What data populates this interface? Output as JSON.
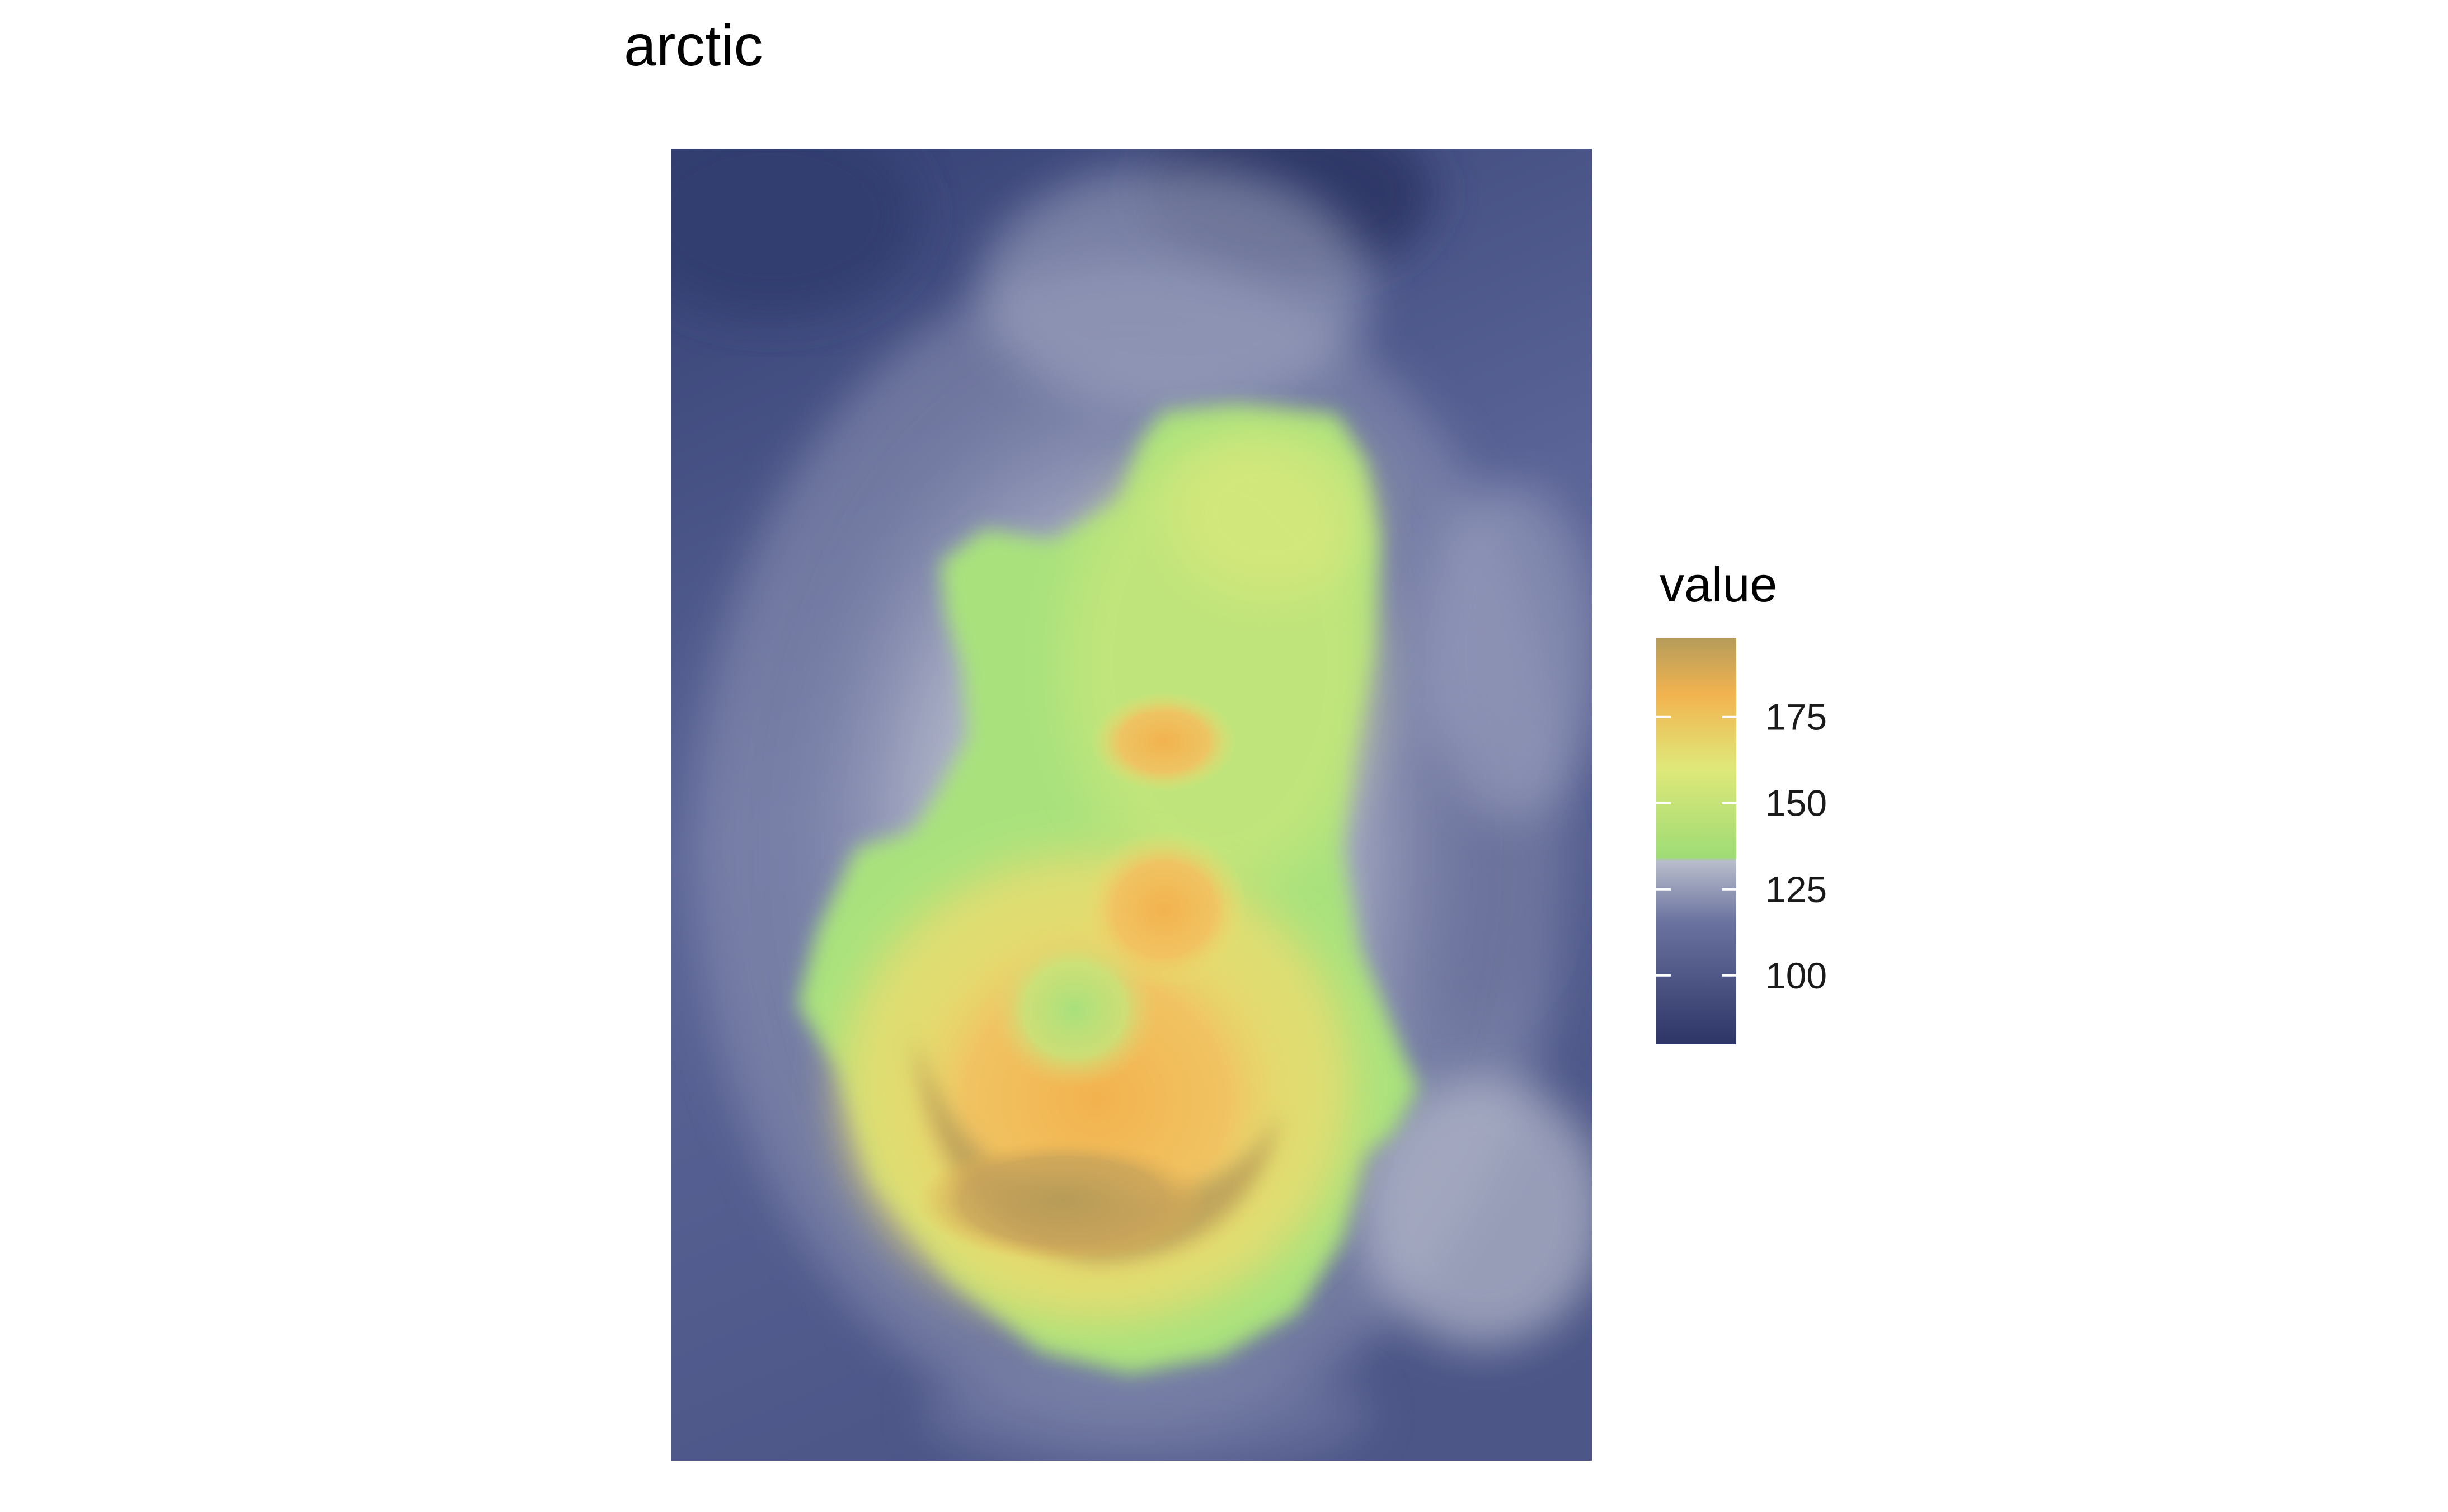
{
  "title": "arctic",
  "legend": {
    "title": "value",
    "ticks": [
      100,
      125,
      150,
      175
    ]
  },
  "colors": {
    "low": "#2c3566",
    "mid": "#b8bccb",
    "green": "#a7e27a",
    "orange": "#f2b34f",
    "high": "#b59c5b"
  },
  "chart_data": {
    "type": "heatmap",
    "title": "arctic",
    "xlabel": "",
    "ylabel": "",
    "value_range": [
      80,
      198
    ],
    "colorbar": {
      "label": "value",
      "ticks": [
        100,
        125,
        150,
        175
      ]
    },
    "field_description": "raster values; high region (~150-198) in center with a peak band near the lower-center, low (~80-100) along edges",
    "grid": false,
    "legend_position": "right"
  }
}
